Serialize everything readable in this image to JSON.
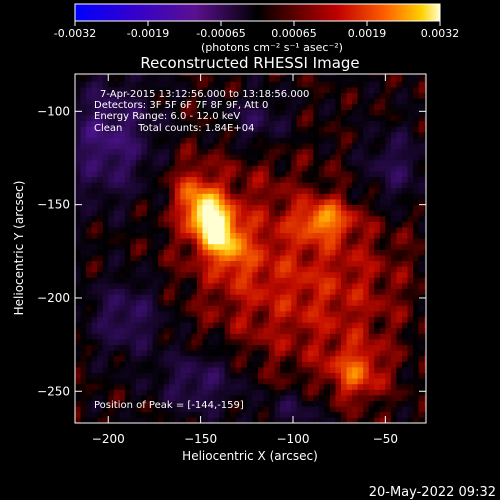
{
  "chart_data": {
    "type": "heatmap",
    "title": "Reconstructed RHESSI Image",
    "xlabel": "Heliocentric X (arcsec)",
    "ylabel": "Heliocentric Y (arcsec)",
    "xlim": [
      -218,
      -28
    ],
    "ylim": [
      -267,
      -80
    ],
    "x_ticks": [
      -200,
      -150,
      -100,
      -50
    ],
    "y_ticks": [
      -100,
      -150,
      -200,
      -250
    ],
    "colorbar": {
      "range": [
        -0.0032,
        0.0032
      ],
      "ticks": [
        "-0.0032",
        "-0.0019",
        "-0.00065",
        "0.00065",
        "0.0019",
        "0.0032"
      ],
      "unit_label": "(photons cm⁻² s⁻¹ asec⁻²)"
    },
    "annotations": [
      "7-Apr-2015 13:12:56.000 to 13:18:56.000",
      "Detectors: 3F 5F 6F 7F 8F 9F, Att 0",
      "Energy Range: 6.0 - 12.0 keV",
      "Clean     Total counts: 1.84E+04"
    ],
    "peak_label": "Position of Peak = [-144,-159]",
    "peak": {
      "x": -144,
      "y": -159,
      "value": 0.0032
    },
    "sources": [
      {
        "x": -144,
        "y": -159,
        "sx": 8,
        "sy": 16,
        "angle": 30,
        "amp": 1.0
      },
      {
        "x": -83,
        "y": -158,
        "sx": 10,
        "sy": 7,
        "angle": 0,
        "amp": 0.55
      },
      {
        "x": -66,
        "y": -240,
        "sx": 10,
        "sy": 10,
        "angle": 0,
        "amp": 0.45
      },
      {
        "x": -120,
        "y": -180,
        "sx": 28,
        "sy": 40,
        "angle": 20,
        "amp": 0.28
      },
      {
        "x": -70,
        "y": -195,
        "sx": 25,
        "sy": 30,
        "angle": 0,
        "amp": 0.22
      }
    ],
    "negative_regions": [
      {
        "x": -200,
        "y": -115,
        "sx": 18,
        "sy": 22,
        "amp": -0.45
      },
      {
        "x": -190,
        "y": -210,
        "sx": 14,
        "sy": 14,
        "amp": -0.35
      },
      {
        "x": -150,
        "y": -245,
        "sx": 16,
        "sy": 12,
        "amp": -0.35
      },
      {
        "x": -120,
        "y": -105,
        "sx": 12,
        "sy": 10,
        "amp": -0.3
      },
      {
        "x": -45,
        "y": -130,
        "sx": 12,
        "sy": 14,
        "amp": -0.3
      },
      {
        "x": -100,
        "y": -260,
        "sx": 12,
        "sy": 8,
        "amp": -0.25
      }
    ],
    "colors": {
      "background": "#000000",
      "text": "#ffffff"
    }
  },
  "footer": {
    "datetime": "20-May-2022 09:32"
  }
}
